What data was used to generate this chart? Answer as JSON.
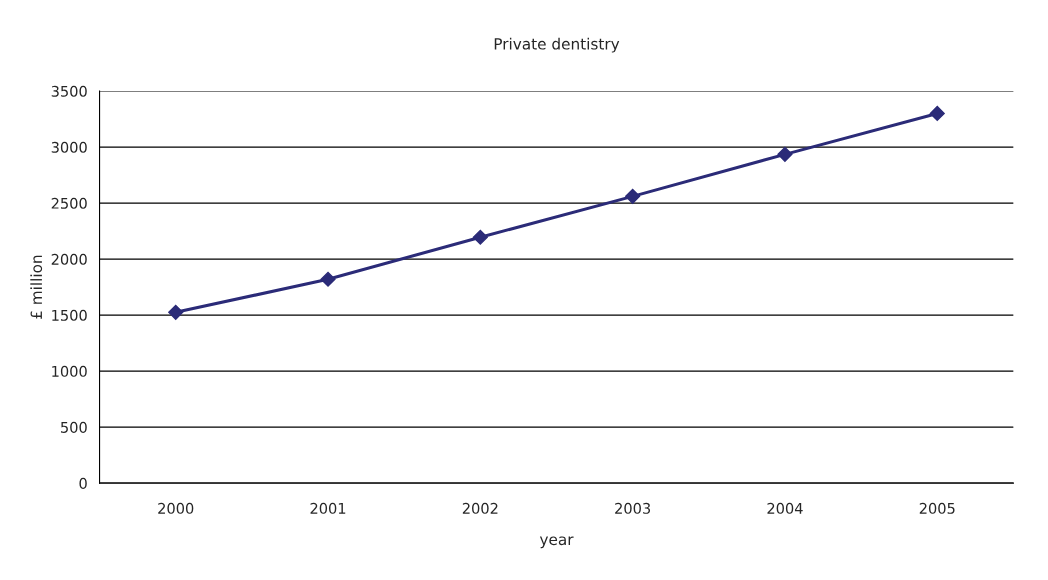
{
  "chart_data": {
    "type": "line",
    "title": "Private dentistry",
    "xlabel": "year",
    "ylabel": "£ million",
    "categories": [
      "2000",
      "2001",
      "2002",
      "2003",
      "2004",
      "2005"
    ],
    "series": [
      {
        "color": "#2b2b78",
        "values": [
          1525,
          1820,
          2195,
          2560,
          2935,
          3300
        ]
      }
    ],
    "ylim": [
      0,
      3500
    ],
    "yticks": [
      0,
      500,
      1000,
      1500,
      2000,
      2500,
      3000,
      3500
    ],
    "grid": "y",
    "marker": "diamond",
    "line_style": "solid"
  }
}
